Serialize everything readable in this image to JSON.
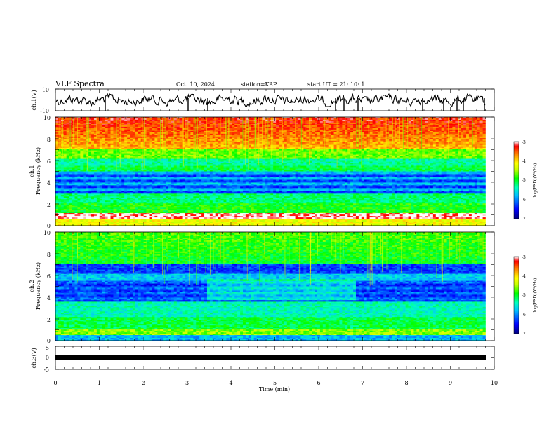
{
  "header": {
    "title": "VLF Spectra",
    "date": "Oct. 10, 2024",
    "station": "station=KAP",
    "start": "start  UT  =   21: 10: 1"
  },
  "chart_data": [
    {
      "type": "line",
      "name": "ch1-waveform",
      "ylabel": "ch.1(V)",
      "ylim": [
        -10,
        10
      ],
      "yticks": [
        "10",
        "-10"
      ],
      "xlim": [
        0,
        10
      ]
    },
    {
      "type": "heatmap",
      "name": "ch1-spectrogram",
      "ylabel_lines": [
        "ch.1",
        "Frequency  (kHz)"
      ],
      "ylim": [
        0,
        10
      ],
      "yticks": [
        "0",
        "2",
        "4",
        "6",
        "8",
        "10"
      ],
      "xlim": [
        0,
        10
      ],
      "data_end_min": 9.8,
      "colorbar": {
        "label": "log(PSD)(V²/Hz)",
        "range": [
          -7,
          -3
        ],
        "ticks": [
          "-3",
          "-4",
          "-5",
          "-6",
          "-7"
        ]
      }
    },
    {
      "type": "heatmap",
      "name": "ch2-spectrogram",
      "ylabel_lines": [
        "ch.2",
        "Frequency  (kHz)"
      ],
      "ylim": [
        0,
        10
      ],
      "yticks": [
        "0",
        "2",
        "4",
        "6",
        "8",
        "10"
      ],
      "xlim": [
        0,
        10
      ],
      "data_end_min": 9.8,
      "colorbar": {
        "label": "log(PSD)(V²/Hz)",
        "range": [
          -7,
          -3
        ],
        "ticks": [
          "-3",
          "-4",
          "-5",
          "-6",
          "-7"
        ]
      }
    },
    {
      "type": "line",
      "name": "ch3-waveform",
      "ylabel": "ch.3(V)",
      "ylim": [
        -5,
        5
      ],
      "yticks": [
        "5",
        "0",
        "-5"
      ],
      "xlim": [
        0,
        10
      ],
      "xlabel": "Time  (min)",
      "xticks": [
        "0",
        "1",
        "2",
        "3",
        "4",
        "5",
        "6",
        "7",
        "8",
        "9",
        "10"
      ]
    }
  ]
}
